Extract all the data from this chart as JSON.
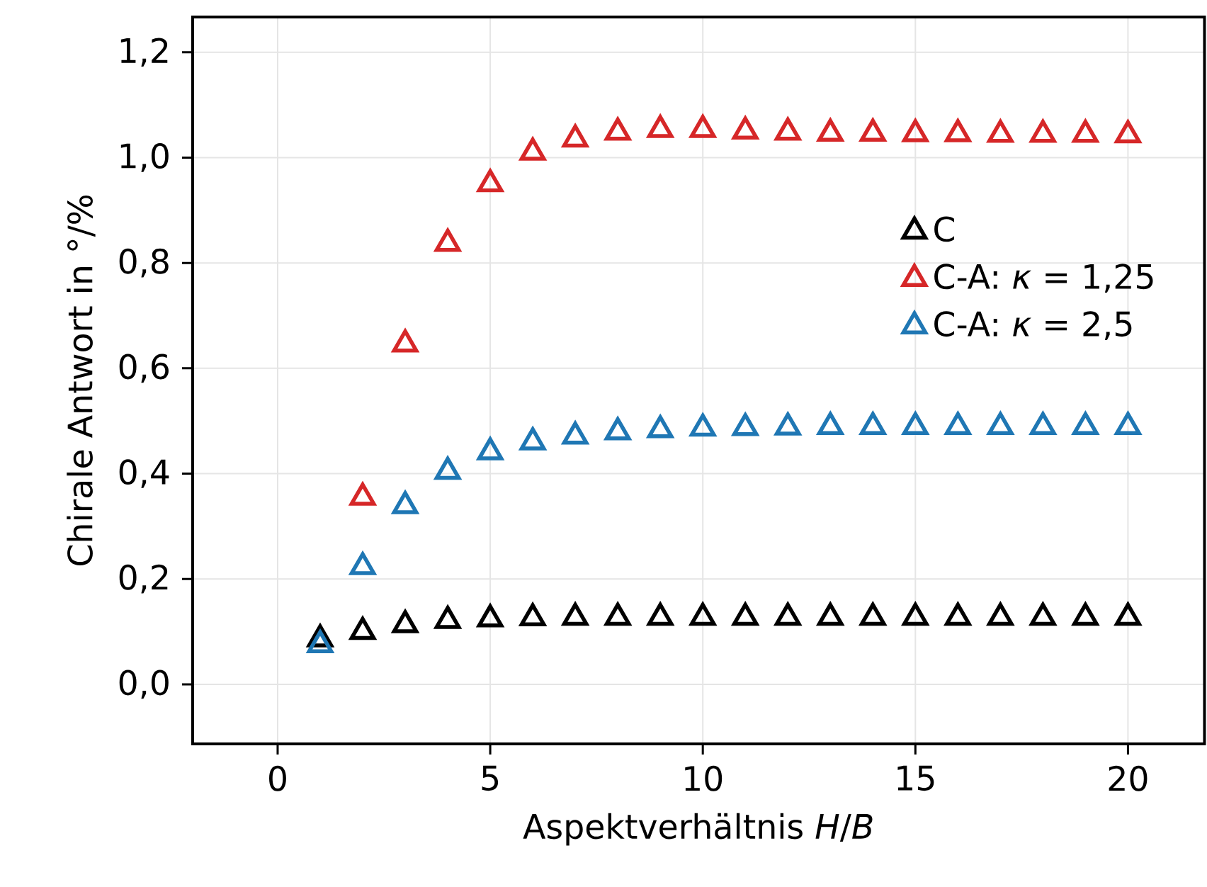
{
  "chart_data": {
    "type": "scatter",
    "xlabel": "Aspektverhältnis *H*/*B*",
    "ylabel": "Chirale Antwort in °/%",
    "x": [
      1,
      2,
      3,
      4,
      5,
      6,
      7,
      8,
      9,
      10,
      11,
      12,
      13,
      14,
      15,
      16,
      17,
      18,
      19,
      20
    ],
    "series": [
      {
        "name": "C",
        "color": "#000000",
        "values": [
          0.086,
          0.1,
          0.113,
          0.121,
          0.124,
          0.126,
          0.127,
          0.127,
          0.127,
          0.127,
          0.127,
          0.127,
          0.127,
          0.127,
          0.127,
          0.127,
          0.127,
          0.127,
          0.127,
          0.127
        ]
      },
      {
        "name": "C-A: *κ* = 1,25",
        "color": "#d62728",
        "values": [
          null,
          0.355,
          0.646,
          0.837,
          0.95,
          1.01,
          1.035,
          1.048,
          1.053,
          1.053,
          1.05,
          1.048,
          1.046,
          1.046,
          1.045,
          1.045,
          1.044,
          1.044,
          1.044,
          1.043
        ]
      },
      {
        "name": "C-A: *κ* = 2,5",
        "color": "#1f77b4",
        "values": [
          0.075,
          0.223,
          0.339,
          0.404,
          0.441,
          0.46,
          0.471,
          0.479,
          0.483,
          0.486,
          0.487,
          0.488,
          0.489,
          0.489,
          0.489,
          0.489,
          0.489,
          0.489,
          0.489,
          0.489
        ]
      }
    ],
    "xlim": [
      -2.0,
      21.8
    ],
    "ylim": [
      -0.113,
      1.267
    ],
    "xticks": [
      0,
      5,
      10,
      15,
      20
    ],
    "yticks": [
      {
        "value": 0.0,
        "label": "0,0"
      },
      {
        "value": 0.2,
        "label": "0,2"
      },
      {
        "value": 0.4,
        "label": "0,4"
      },
      {
        "value": 0.6,
        "label": "0,6"
      },
      {
        "value": 0.8,
        "label": "0,8"
      },
      {
        "value": 1.0,
        "label": "1,0"
      },
      {
        "value": 1.2,
        "label": "1,2"
      }
    ],
    "grid": true,
    "legend": "right",
    "marker": "triangle"
  }
}
